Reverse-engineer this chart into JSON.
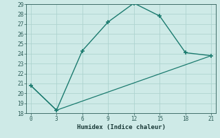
{
  "xlabel": "Humidex (Indice chaleur)",
  "line1_x": [
    0,
    3,
    6,
    9,
    12,
    15,
    18,
    21
  ],
  "line1_y": [
    20.8,
    18.3,
    24.3,
    27.2,
    29.1,
    27.8,
    24.1,
    23.8
  ],
  "line2_x": [
    0,
    3,
    21
  ],
  "line2_y": [
    20.8,
    18.3,
    23.8
  ],
  "xlim": [
    -0.5,
    21.5
  ],
  "ylim": [
    18,
    29
  ],
  "xticks": [
    0,
    3,
    6,
    9,
    12,
    15,
    18,
    21
  ],
  "yticks": [
    18,
    19,
    20,
    21,
    22,
    23,
    24,
    25,
    26,
    27,
    28,
    29
  ],
  "line_color": "#1a7a6e",
  "bg_color": "#ceeae7",
  "grid_color": "#aed4d0",
  "tick_color": "#2a5a55",
  "label_color": "#1a3a38"
}
